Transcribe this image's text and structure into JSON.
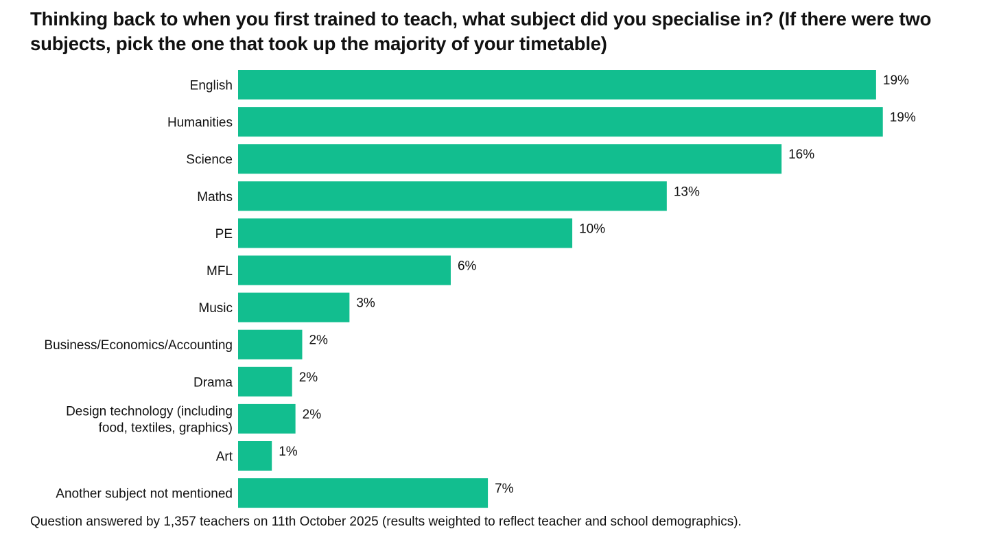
{
  "chart_data": {
    "type": "bar",
    "orientation": "horizontal",
    "title": "Thinking back to when you first trained to teach, what subject did you specialise in? (If there were two subjects, pick the one that took up the majority of your timetable)",
    "categories": [
      [
        "English"
      ],
      [
        "Humanities"
      ],
      [
        "Science"
      ],
      [
        "Maths"
      ],
      [
        "PE"
      ],
      [
        "MFL"
      ],
      [
        "Music"
      ],
      [
        "Business/Economics/Accounting"
      ],
      [
        "Drama"
      ],
      [
        "Design technology (including",
        "food, textiles, graphics)"
      ],
      [
        "Art"
      ],
      [
        "Another subject not mentioned"
      ]
    ],
    "values": [
      18.9,
      19.1,
      16.1,
      12.7,
      9.9,
      6.3,
      3.3,
      1.9,
      1.6,
      1.7,
      1.0,
      7.4
    ],
    "data_labels": [
      "19%",
      "19%",
      "16%",
      "13%",
      "10%",
      "6%",
      "3%",
      "2%",
      "2%",
      "2%",
      "1%",
      "7%"
    ],
    "xlim": [
      0,
      20
    ],
    "unit": "%",
    "grid": false,
    "axes_visible": false,
    "legend": "none",
    "bar_color": "#12BE8F"
  },
  "footnote": "Question answered by 1,357 teachers on 11th October 2025 (results weighted to reflect teacher and school demographics)."
}
